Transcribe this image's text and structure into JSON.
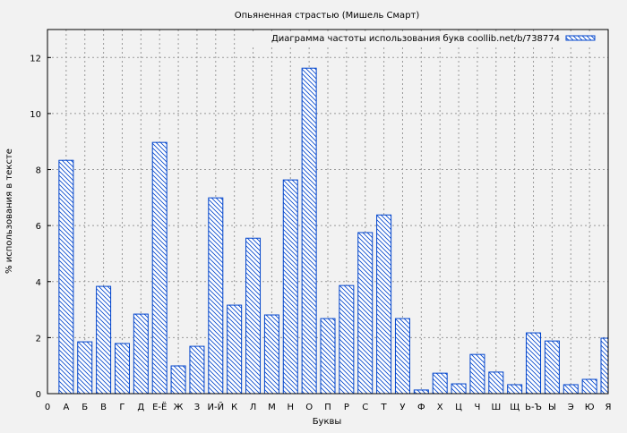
{
  "chart_data": {
    "type": "bar",
    "title": "Опьяненная страстью (Мишель Смарт)",
    "xlabel": "Буквы",
    "ylabel": "% использования в тексте",
    "ylim": [
      0,
      13
    ],
    "yticks": [
      0,
      2,
      4,
      6,
      8,
      10,
      12
    ],
    "grid": true,
    "legend_position": "top-right",
    "categories": [
      "0",
      "А",
      "Б",
      "В",
      "Г",
      "Д",
      "Е-Ё",
      "Ж",
      "З",
      "И-Й",
      "К",
      "Л",
      "М",
      "Н",
      "О",
      "П",
      "Р",
      "С",
      "Т",
      "У",
      "Ф",
      "Х",
      "Ц",
      "Ч",
      "Ш",
      "Щ",
      "Ь-Ъ",
      "Ы",
      "Э",
      "Ю",
      "Я"
    ],
    "series": [
      {
        "name": "Диаграмма частоты использования букв coollib.net/b/738774",
        "color": "#0044cc",
        "values": [
          null,
          8.33,
          1.85,
          3.83,
          1.79,
          2.84,
          8.97,
          0.99,
          1.69,
          6.99,
          3.16,
          5.55,
          2.81,
          7.63,
          11.62,
          2.68,
          3.86,
          5.75,
          6.38,
          2.68,
          0.13,
          0.73,
          0.35,
          1.4,
          0.77,
          0.32,
          2.17,
          1.88,
          0.32,
          0.51,
          1.98
        ]
      }
    ]
  }
}
